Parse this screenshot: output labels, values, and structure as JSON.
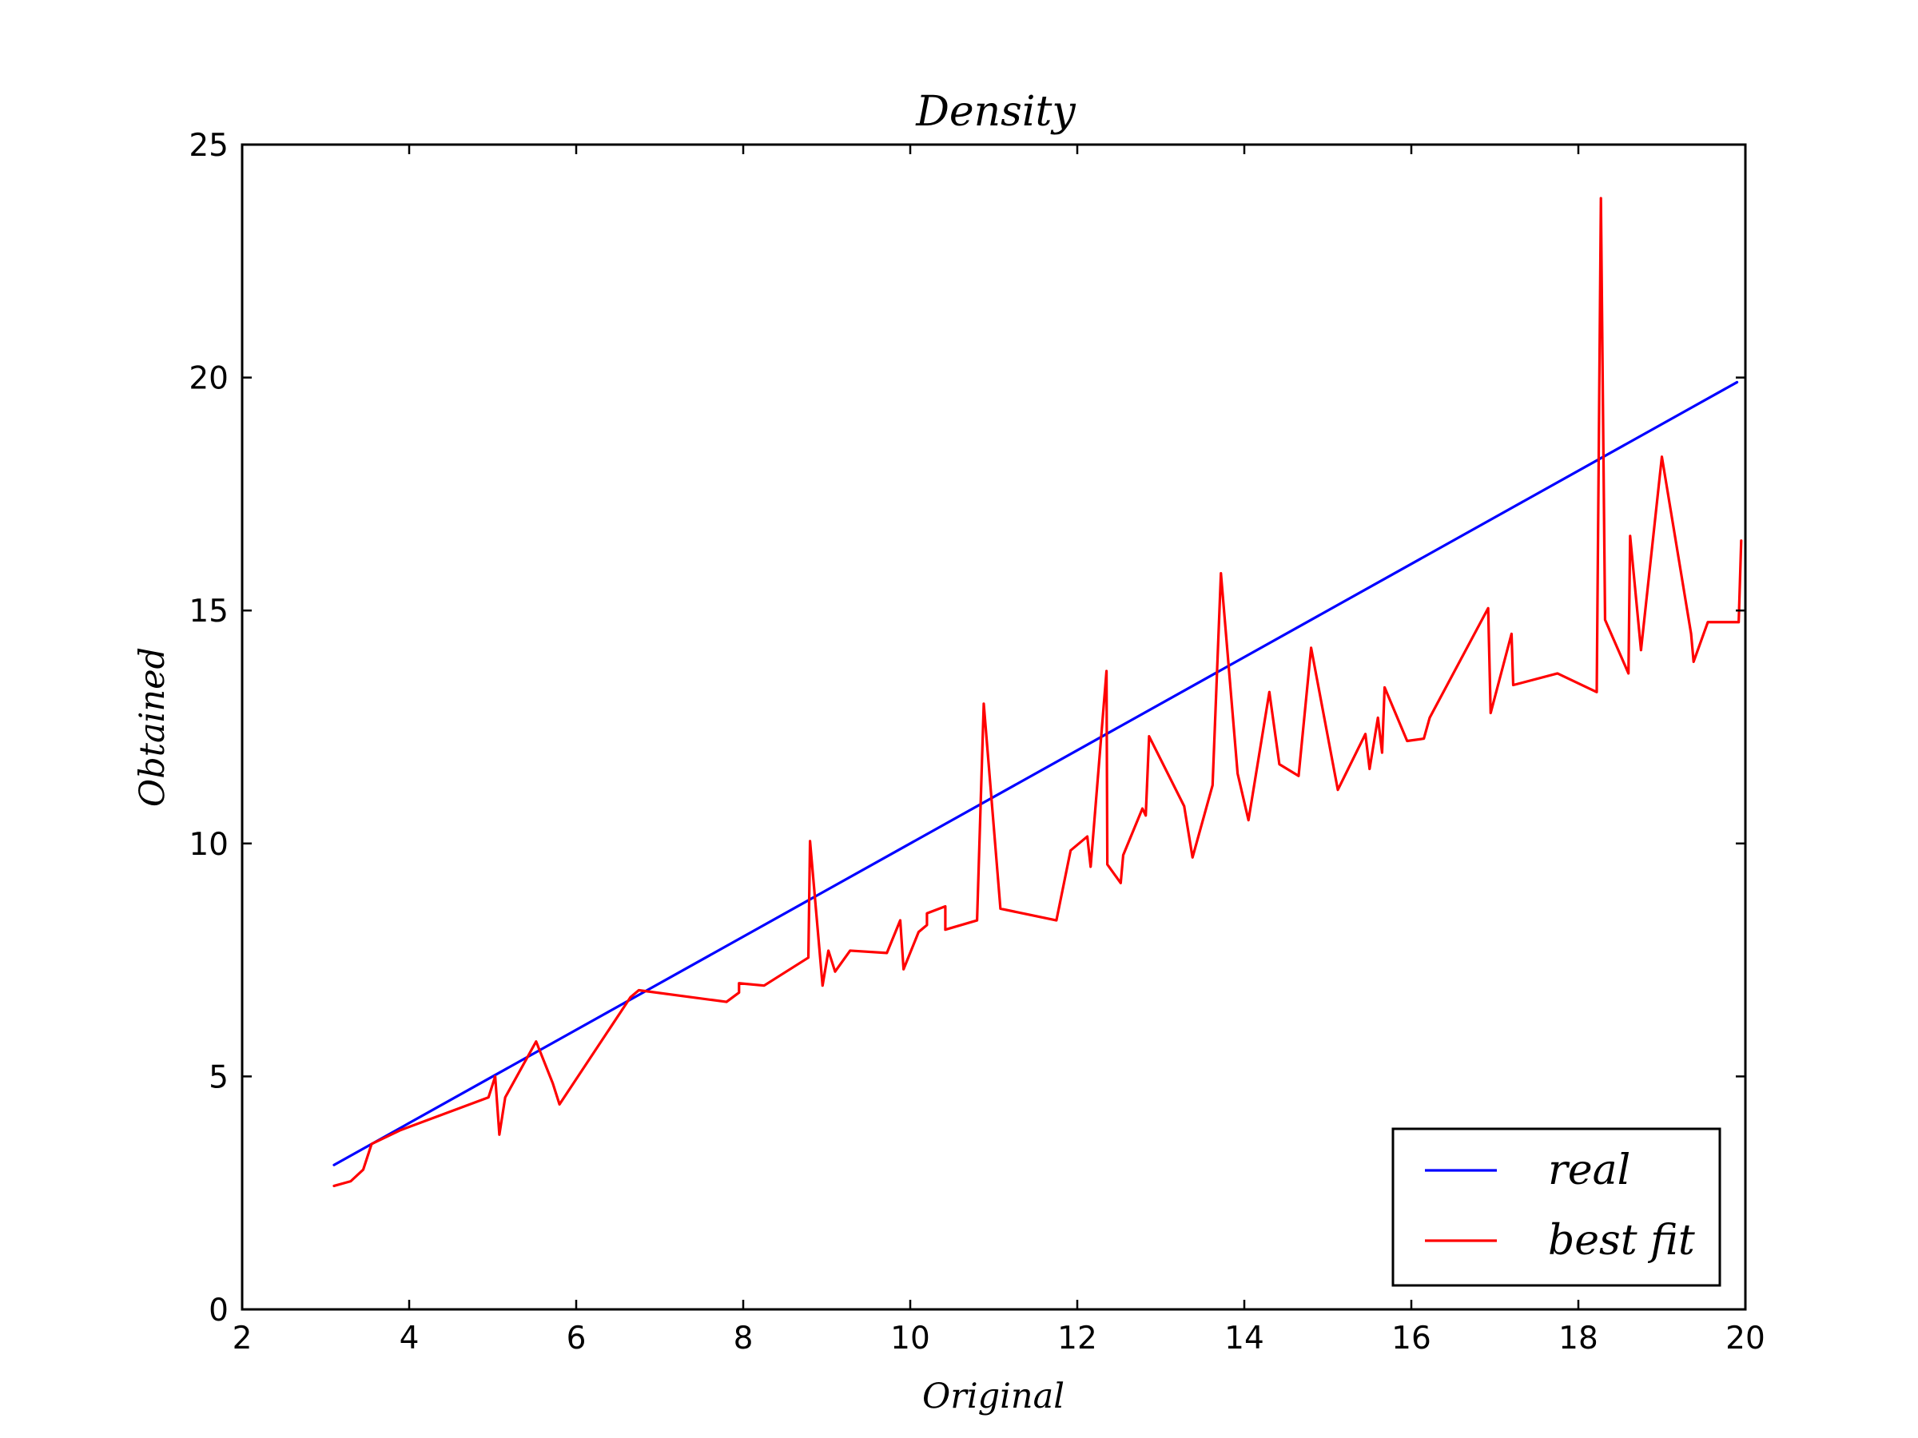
{
  "chart_data": {
    "type": "line",
    "title": "Density",
    "xlabel": "Original",
    "ylabel": "Obtained",
    "xlim": [
      2,
      20
    ],
    "ylim": [
      0,
      25
    ],
    "xticks": [
      2,
      4,
      6,
      8,
      10,
      12,
      14,
      16,
      18,
      20
    ],
    "yticks": [
      0,
      5,
      10,
      15,
      20,
      25
    ],
    "xtick_labels": [
      "2",
      "4",
      "6",
      "8",
      "10",
      "12",
      "14",
      "16",
      "18",
      "20"
    ],
    "ytick_labels": [
      "0",
      "5",
      "10",
      "15",
      "20",
      "25"
    ],
    "grid": false,
    "legend_position": "lower-right",
    "series": [
      {
        "name": "real",
        "color": "#0000ff",
        "x": [
          3.1,
          19.9
        ],
        "y": [
          3.1,
          19.9
        ]
      },
      {
        "name": "best fit",
        "color": "#ff0000",
        "x": [
          3.1,
          3.3,
          3.45,
          3.55,
          3.9,
          4.95,
          5.03,
          5.08,
          5.15,
          5.52,
          5.72,
          5.8,
          6.65,
          6.75,
          7.8,
          7.95,
          7.95,
          8.25,
          8.78,
          8.8,
          8.95,
          9.02,
          9.1,
          9.28,
          9.72,
          9.88,
          9.92,
          10.1,
          10.2,
          10.2,
          10.42,
          10.42,
          10.8,
          10.88,
          11.08,
          11.75,
          11.92,
          12.12,
          12.16,
          12.35,
          12.36,
          12.52,
          12.55,
          12.78,
          12.82,
          12.86,
          13.28,
          13.38,
          13.62,
          13.72,
          13.92,
          14.05,
          14.3,
          14.42,
          14.65,
          14.68,
          14.8,
          15.12,
          15.45,
          15.5,
          15.6,
          15.65,
          15.68,
          15.95,
          16.15,
          16.22,
          16.92,
          16.95,
          17.2,
          17.22,
          17.75,
          18.22,
          18.27,
          18.32,
          18.6,
          18.62,
          18.75,
          19.0,
          19.35,
          19.38,
          19.55,
          19.92,
          19.95
        ],
        "y": [
          2.65,
          2.75,
          3.0,
          3.55,
          3.85,
          4.55,
          5.0,
          3.75,
          4.55,
          5.75,
          4.85,
          4.4,
          6.7,
          6.85,
          6.6,
          6.8,
          7.0,
          6.95,
          7.55,
          10.05,
          6.95,
          7.7,
          7.25,
          7.7,
          7.65,
          8.35,
          7.3,
          8.1,
          8.25,
          8.5,
          8.65,
          8.15,
          8.35,
          13.0,
          8.6,
          8.35,
          9.85,
          10.15,
          9.5,
          13.7,
          9.55,
          9.15,
          9.75,
          10.75,
          10.6,
          12.3,
          10.8,
          9.7,
          11.25,
          15.8,
          11.5,
          10.5,
          13.25,
          11.7,
          11.45,
          12.0,
          14.2,
          11.15,
          12.35,
          11.6,
          12.7,
          11.95,
          13.35,
          12.2,
          12.25,
          12.7,
          15.05,
          12.8,
          14.5,
          13.4,
          13.65,
          13.25,
          23.85,
          14.8,
          13.65,
          16.6,
          14.15,
          18.3,
          14.5,
          13.9,
          14.75,
          14.75,
          16.5
        ]
      }
    ]
  }
}
